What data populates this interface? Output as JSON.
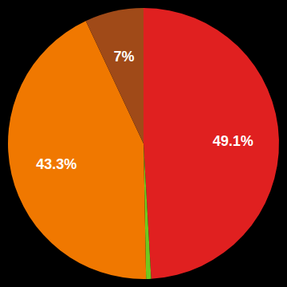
{
  "chart_data": {
    "type": "pie",
    "values": [
      49.1,
      0.6,
      43.3,
      7.0
    ],
    "value_labels": [
      "49.1%",
      null,
      "43.3%",
      "7%"
    ],
    "colors": [
      "#e02020",
      "#70c820",
      "#f07800",
      "#a04a18"
    ],
    "data_labels": true
  }
}
